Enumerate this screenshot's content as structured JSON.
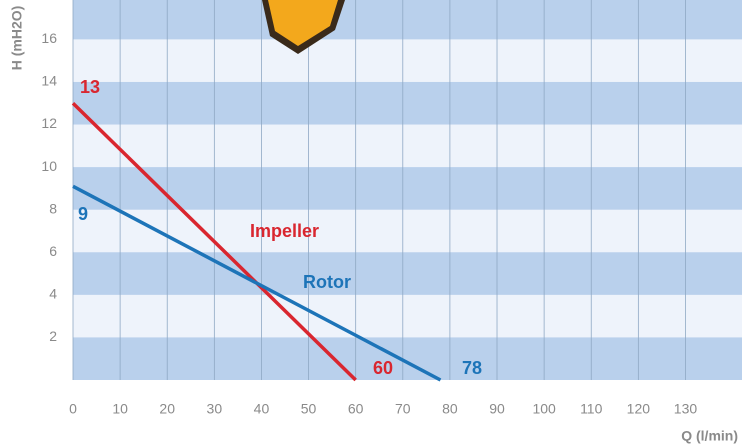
{
  "chart_data": {
    "type": "line",
    "y_label": "H (mH2O)",
    "x_label": "Q (l/min)",
    "xlim": [
      0,
      142
    ],
    "ylim": [
      0,
      17.85
    ],
    "xticks": [
      0,
      10,
      20,
      30,
      40,
      50,
      60,
      70,
      80,
      90,
      100,
      110,
      120,
      130
    ],
    "yticks": [
      2,
      4,
      6,
      8,
      10,
      12,
      14,
      16
    ],
    "grid": true,
    "series": [
      {
        "name": "Impeller",
        "color": "#d9262f",
        "x": [
          0,
          60
        ],
        "values": [
          13,
          0
        ]
      },
      {
        "name": "Rotor",
        "color": "#1d74b8",
        "x": [
          0,
          78
        ],
        "values": [
          9.1,
          0
        ]
      }
    ],
    "annotations": [
      {
        "text": "13",
        "color": "#d9262f"
      },
      {
        "text": "9",
        "color": "#1d74b8"
      },
      {
        "text": "60",
        "color": "#d9262f"
      },
      {
        "text": "78",
        "color": "#1d74b8"
      }
    ]
  }
}
